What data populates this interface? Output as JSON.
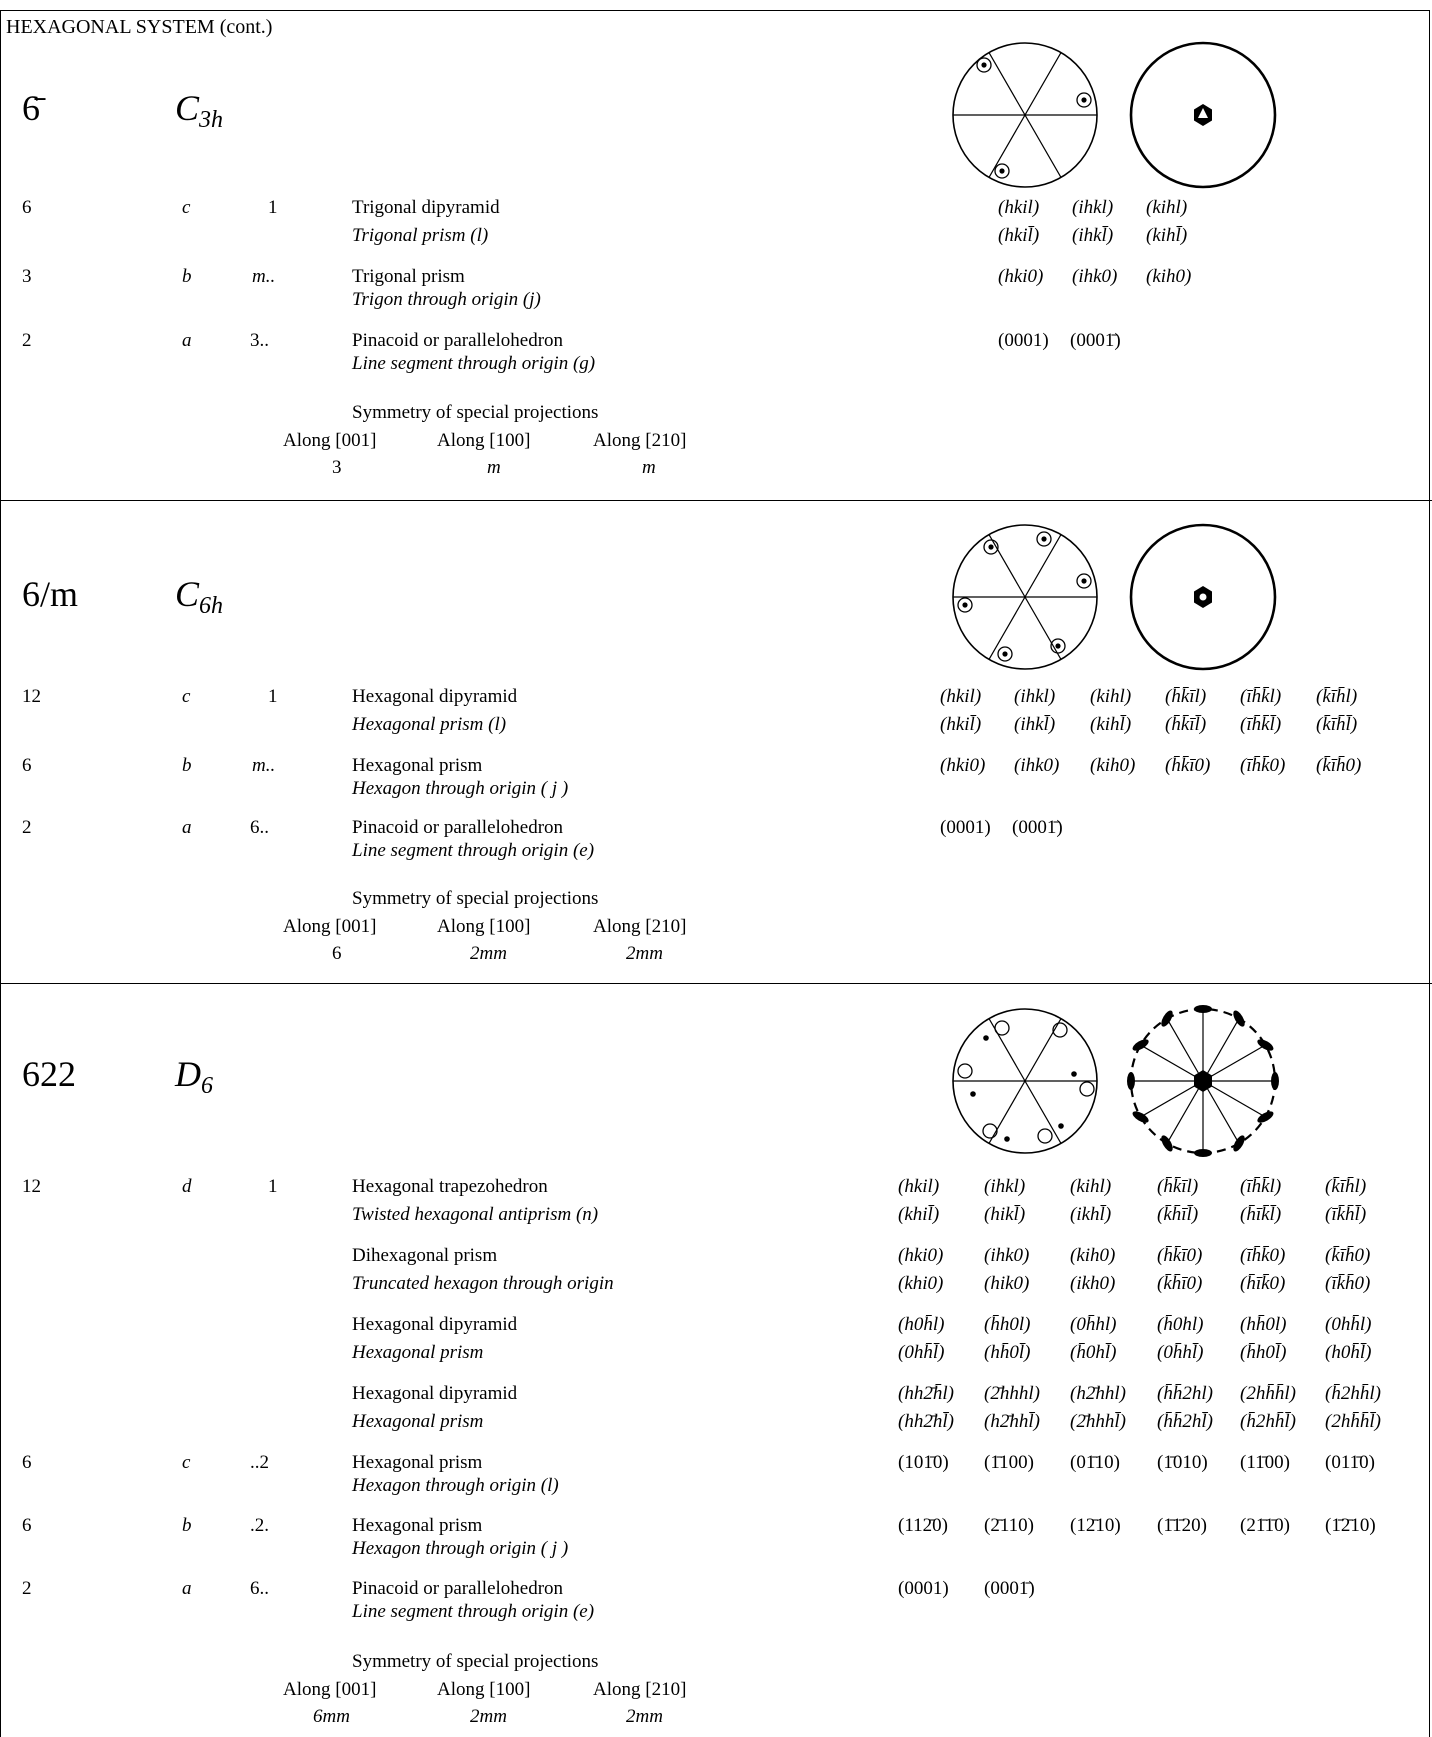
{
  "page_title": "HEXAGONAL SYSTEM (cont.)",
  "sections": [
    {
      "symbol": "6̄",
      "schoenflies_base": "C",
      "schoenflies_sub": "3h",
      "rows": [
        {
          "mult": "6",
          "wyck": "c",
          "site": "1",
          "form": "Trigonal dipyramid",
          "form_italic": "Trigonal prism (l)",
          "indices": [
            [
              "(hkil)",
              "(ihkl)",
              "(kihl)"
            ],
            [
              "(hkil̄)",
              "(ihkl̄)",
              "(kihl̄)"
            ]
          ]
        },
        {
          "mult": "3",
          "wyck": "b",
          "site": "m..",
          "form": "Trigonal prism",
          "form_italic": "Trigon through origin (j)",
          "indices": [
            [
              "(hki0)",
              "(ihk0)",
              "(kih0)"
            ]
          ]
        },
        {
          "mult": "2",
          "wyck": "a",
          "site": "3..",
          "form": "Pinacoid or parallelohedron",
          "form_italic": "Line segment through origin (g)",
          "indices": [
            [
              "(0001)",
              "(0001̄)"
            ]
          ]
        }
      ],
      "projections_title": "Symmetry of special projections",
      "projections": [
        {
          "label": "Along [001]",
          "value": "3"
        },
        {
          "label": "Along [100]",
          "value": "m"
        },
        {
          "label": "Along [210]",
          "value": "m"
        }
      ]
    },
    {
      "symbol": "6/m",
      "schoenflies_base": "C",
      "schoenflies_sub": "6h",
      "rows": [
        {
          "mult": "12",
          "wyck": "c",
          "site": "1",
          "form": "Hexagonal dipyramid",
          "form_italic": "Hexagonal prism (l)",
          "indices": [
            [
              "(hkil)",
              "(ihkl)",
              "(kihl)",
              "(h̄k̄īl)",
              "(īh̄k̄l)",
              "(k̄īh̄l)"
            ],
            [
              "(hkil̄)",
              "(ihkl̄)",
              "(kihl̄)",
              "(h̄k̄īl̄)",
              "(īh̄k̄l̄)",
              "(k̄īh̄l̄)"
            ]
          ]
        },
        {
          "mult": "6",
          "wyck": "b",
          "site": "m..",
          "form": "Hexagonal prism",
          "form_italic": "Hexagon through origin ( j )",
          "indices": [
            [
              "(hki0)",
              "(ihk0)",
              "(kih0)",
              "(h̄k̄ī0)",
              "(īh̄k̄0)",
              "(k̄īh̄0)"
            ]
          ]
        },
        {
          "mult": "2",
          "wyck": "a",
          "site": "6..",
          "form": "Pinacoid or parallelohedron",
          "form_italic": "Line segment through origin (e)",
          "indices": [
            [
              "(0001)",
              "(0001̄)"
            ]
          ]
        }
      ],
      "projections_title": "Symmetry of special projections",
      "projections": [
        {
          "label": "Along [001]",
          "value": "6"
        },
        {
          "label": "Along [100]",
          "value": "2mm"
        },
        {
          "label": "Along [210]",
          "value": "2mm"
        }
      ]
    },
    {
      "symbol": "622",
      "schoenflies_base": "D",
      "schoenflies_sub": "6",
      "rows": [
        {
          "mult": "12",
          "wyck": "d",
          "site": "1",
          "form": "Hexagonal trapezohedron",
          "form_italic": "Twisted hexagonal antiprism (n)",
          "indices": [
            [
              "(hkil)",
              "(ihkl)",
              "(kihl)",
              "(h̄k̄īl)",
              "(īh̄k̄l)",
              "(k̄īh̄l)"
            ],
            [
              "(khil̄)",
              "(hikl̄)",
              "(ikhl̄)",
              "(k̄h̄īl̄)",
              "(h̄īk̄l̄)",
              "(īk̄h̄l̄)"
            ]
          ]
        },
        {
          "mult": "",
          "wyck": "",
          "site": "",
          "form": "Dihexagonal prism",
          "form_italic": "Truncated hexagon through origin",
          "indices": [
            [
              "(hki0)",
              "(ihk0)",
              "(kih0)",
              "(h̄k̄ī0)",
              "(īh̄k̄0)",
              "(k̄īh̄0)"
            ],
            [
              "(khi0)",
              "(hik0)",
              "(ikh0)",
              "(k̄h̄ī0)",
              "(h̄īk̄0)",
              "(īk̄h̄0)"
            ]
          ]
        },
        {
          "mult": "",
          "wyck": "",
          "site": "",
          "form": "Hexagonal dipyramid",
          "form_italic": "Hexagonal prism",
          "indices": [
            [
              "(h0h̄l)",
              "(h̄h0l)",
              "(0h̄hl)",
              "(h̄0hl)",
              "(hh̄0l)",
              "(0hh̄l)"
            ],
            [
              "(0hh̄l̄)",
              "(hh̄0l̄)",
              "(h̄0hl̄)",
              "(0h̄hl̄)",
              "(h̄h0l̄)",
              "(h0h̄l̄)"
            ]
          ]
        },
        {
          "mult": "",
          "wyck": "",
          "site": "",
          "form": "Hexagonal dipyramid",
          "form_italic": "Hexagonal prism",
          "indices": [
            [
              "(hh2̄h̄l)",
              "(2̄hhhl)",
              "(h2̄hhl)",
              "(h̄h̄2hl)",
              "(2hh̄h̄l)",
              "(h̄2hh̄l)"
            ],
            [
              "(hh2̄hl̄)",
              "(h2̄hhl̄)",
              "(2̄hhhl̄)",
              "(h̄h̄2hl̄)",
              "(h̄2hh̄l̄)",
              "(2hh̄h̄l̄)"
            ]
          ]
        },
        {
          "mult": "6",
          "wyck": "c",
          "site": "..2",
          "form": "Hexagonal prism",
          "form_italic": "Hexagon through origin (l)",
          "indices": [
            [
              "(101̄0)",
              "(1̄100)",
              "(01̄10)",
              "(1̄010)",
              "(11̄00)",
              "(011̄0)"
            ]
          ]
        },
        {
          "mult": "6",
          "wyck": "b",
          "site": ".2.",
          "form": "Hexagonal prism",
          "form_italic": "Hexagon through origin ( j )",
          "indices": [
            [
              "(112̄0)",
              "(2̄110)",
              "(12̄10)",
              "(1̄1̄20)",
              "(21̄1̄0)",
              "(1̄2̄10)"
            ]
          ]
        },
        {
          "mult": "2",
          "wyck": "a",
          "site": "6..",
          "form": "Pinacoid or parallelohedron",
          "form_italic": "Line segment through origin (e)",
          "indices": [
            [
              "(0001)",
              "(0001̄)"
            ]
          ]
        }
      ],
      "projections_title": "Symmetry of special projections",
      "projections": [
        {
          "label": "Along [001]",
          "value": "6mm"
        },
        {
          "label": "Along [100]",
          "value": "2mm"
        },
        {
          "label": "Along [210]",
          "value": "2mm"
        }
      ]
    }
  ]
}
